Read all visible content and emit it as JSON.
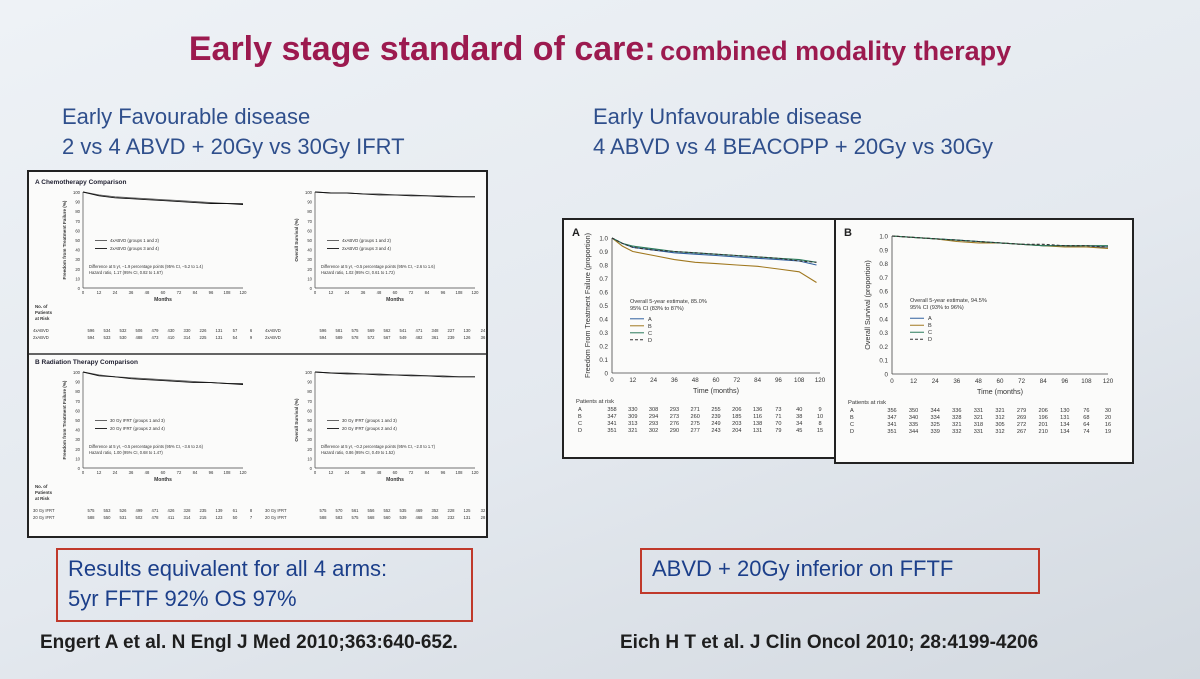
{
  "slide": {
    "title_main": "Early stage standard of care:",
    "title_sub": "combined modality therapy",
    "left": {
      "heading_line1": "Early Favourable disease",
      "heading_line2": "2 vs 4 ABVD + 20Gy vs 30Gy IFRT",
      "result_line1": "Results equivalent for all 4 arms:",
      "result_line2": "5yr FFTF 92%  OS 97%",
      "reference": "Engert A et al. N Engl J Med 2010;363:640-652."
    },
    "right": {
      "heading_line1": "Early Unfavourable disease",
      "heading_line2": "4 ABVD vs 4 BEACOPP + 20Gy vs 30Gy",
      "result": "ABVD + 20Gy inferior on FFTF",
      "reference": "Eich H T et al. J Clin Oncol 2010; 28:4199-4206"
    }
  },
  "colors": {
    "title": "#9c1a4f",
    "heading": "#2f4f8c",
    "box_border": "#c0392b",
    "box_text": "#1c3f8a"
  },
  "left_figure": {
    "sections": [
      {
        "title": "A  Chemotherapy Comparison",
        "panels": [
          {
            "ylabel": "Freedom from Treatment Failure (%)",
            "legend": [
              "4xABVD (groups 1 and 2)",
              "2xABVD (groups 3 and 4)"
            ],
            "stat_1": "Difference at 5 yr, −1.9 percentage points (95% CI, −5.2 to 1.4)",
            "stat_2": "Hazard ratio, 1.17 (95% CI, 0.82 to 1.67)"
          },
          {
            "ylabel": "Overall Survival (%)",
            "legend": [
              "4xABVD (groups 1 and 2)",
              "2xABVD (groups 3 and 4)"
            ],
            "stat_1": "Difference at 5 yr, −0.5 percentage points (95% CI, −2.6 to 1.6)",
            "stat_2": "Hazard ratio, 1.02 (95% CI, 0.61 to 1.72)"
          }
        ],
        "risk_labels": [
          "4xABVD",
          "2xABVD"
        ],
        "risk_rows": [
          [
            "596",
            "534",
            "532",
            "506",
            "479",
            "430",
            "330",
            "226",
            "131",
            "57",
            "6"
          ],
          [
            "594",
            "533",
            "530",
            "488",
            "473",
            "410",
            "314",
            "225",
            "131",
            "54",
            "9"
          ]
        ],
        "risk_rows_os": [
          [
            "596",
            "581",
            "575",
            "569",
            "562",
            "541",
            "471",
            "348",
            "227",
            "130",
            "24"
          ],
          [
            "594",
            "589",
            "578",
            "572",
            "567",
            "549",
            "482",
            "361",
            "239",
            "126",
            "36"
          ]
        ]
      },
      {
        "title": "B  Radiation Therapy Comparison",
        "panels": [
          {
            "ylabel": "Freedom from Treatment Failure (%)",
            "legend": [
              "30 Gy IFRT (groups 1 and 3)",
              "20 Gy IFRT (groups 2 and 4)"
            ],
            "stat_1": "Difference at 5 yr, −0.5 percentage points (95% CI, −3.6 to 2.6)",
            "stat_2": "Hazard ratio, 1.00 (95% CI, 0.68 to 1.47)"
          },
          {
            "ylabel": "Overall Survival (%)",
            "legend": [
              "30 Gy IFRT (groups 1 and 3)",
              "20 Gy IFRT (groups 2 and 4)"
            ],
            "stat_1": "Difference at 5 yr, −0.2 percentage points (95% CI, −2.0 to 1.7)",
            "stat_2": "Hazard ratio, 0.86 (95% CI, 0.49 to 1.52)"
          }
        ],
        "risk_labels": [
          "30 Gy IFRT",
          "20 Gy IFRT"
        ],
        "risk_rows": [
          [
            "575",
            "553",
            "526",
            "499",
            "471",
            "426",
            "328",
            "235",
            "139",
            "61",
            "8"
          ],
          [
            "588",
            "550",
            "531",
            "502",
            "478",
            "411",
            "314",
            "215",
            "123",
            "50",
            "7"
          ]
        ],
        "risk_rows_os": [
          [
            "575",
            "570",
            "561",
            "556",
            "552",
            "535",
            "469",
            "352",
            "228",
            "125",
            "32"
          ],
          [
            "588",
            "583",
            "575",
            "568",
            "560",
            "539",
            "468",
            "346",
            "232",
            "131",
            "28"
          ]
        ]
      }
    ],
    "xlabel": "Months",
    "yticks": [
      "100",
      "90",
      "80",
      "70",
      "60",
      "50",
      "40",
      "30",
      "20",
      "10",
      "0"
    ],
    "xticks": [
      "0",
      "12",
      "24",
      "36",
      "48",
      "60",
      "72",
      "84",
      "96",
      "108",
      "120"
    ],
    "risk_header": [
      "No. of",
      "Patients",
      "at Risk"
    ]
  },
  "right_figure": {
    "panel_a": {
      "letter": "A",
      "ylabel": "Freedom From Treatment Failure (proportion)",
      "estimate_1": "Overall 5-year estimate, 85.0%",
      "estimate_2": "95% CI (83% to 87%)",
      "risk": [
        [
          "A",
          "358",
          "330",
          "308",
          "293",
          "271",
          "255",
          "206",
          "136",
          "73",
          "40",
          "9"
        ],
        [
          "B",
          "347",
          "309",
          "294",
          "273",
          "260",
          "239",
          "185",
          "116",
          "71",
          "38",
          "10"
        ],
        [
          "C",
          "341",
          "313",
          "293",
          "276",
          "275",
          "249",
          "203",
          "138",
          "70",
          "34",
          "8"
        ],
        [
          "D",
          "351",
          "321",
          "302",
          "290",
          "277",
          "243",
          "204",
          "131",
          "79",
          "45",
          "15"
        ]
      ]
    },
    "panel_b": {
      "letter": "B",
      "ylabel": "Overall Survival (proportion)",
      "estimate_1": "Overall 5-year estimate, 94.5%",
      "estimate_2": "95% CI (93% to 96%)",
      "risk": [
        [
          "A",
          "356",
          "350",
          "344",
          "336",
          "331",
          "321",
          "279",
          "206",
          "130",
          "76",
          "30"
        ],
        [
          "B",
          "347",
          "340",
          "334",
          "328",
          "321",
          "312",
          "269",
          "196",
          "131",
          "68",
          "20"
        ],
        [
          "C",
          "341",
          "335",
          "325",
          "321",
          "318",
          "305",
          "272",
          "201",
          "134",
          "64",
          "16"
        ],
        [
          "D",
          "351",
          "344",
          "339",
          "332",
          "331",
          "312",
          "267",
          "210",
          "134",
          "74",
          "19"
        ]
      ]
    },
    "yticks": [
      "1.0",
      "0.9",
      "0.8",
      "0.7",
      "0.6",
      "0.5",
      "0.4",
      "0.3",
      "0.2",
      "0.1",
      "0"
    ],
    "xticks": [
      "0",
      "12",
      "24",
      "36",
      "48",
      "60",
      "72",
      "84",
      "96",
      "108",
      "120"
    ],
    "xlabel": "Time (months)",
    "legend": [
      "A",
      "B",
      "C",
      "D"
    ],
    "risk_header": "Patients at risk"
  },
  "chart_data": [
    {
      "type": "line",
      "title": "A  Chemotherapy Comparison",
      "ylabel": "Freedom from Treatment Failure (%)",
      "xlabel": "Months",
      "xlim": [
        0,
        120
      ],
      "ylim": [
        0,
        100
      ],
      "series": [
        {
          "name": "4xABVD (groups 1 and 2)",
          "x": [
            0,
            12,
            24,
            36,
            48,
            60,
            72,
            84,
            96,
            108,
            120
          ],
          "y": [
            100,
            97,
            95,
            94,
            93,
            92,
            91,
            90,
            89,
            88,
            88
          ]
        },
        {
          "name": "2xABVD (groups 3 and 4)",
          "x": [
            0,
            12,
            24,
            36,
            48,
            60,
            72,
            84,
            96,
            108,
            120
          ],
          "y": [
            100,
            96,
            94,
            93,
            92,
            91,
            90,
            89,
            88,
            88,
            87
          ]
        }
      ]
    },
    {
      "type": "line",
      "title": "A  Chemotherapy Comparison",
      "ylabel": "Overall Survival (%)",
      "xlabel": "Months",
      "xlim": [
        0,
        120
      ],
      "ylim": [
        0,
        100
      ],
      "series": [
        {
          "name": "4xABVD (groups 1 and 2)",
          "x": [
            0,
            12,
            24,
            36,
            48,
            60,
            72,
            84,
            96,
            108,
            120
          ],
          "y": [
            100,
            99,
            99,
            98,
            98,
            97,
            97,
            96,
            96,
            95,
            95
          ]
        },
        {
          "name": "2xABVD (groups 3 and 4)",
          "x": [
            0,
            12,
            24,
            36,
            48,
            60,
            72,
            84,
            96,
            108,
            120
          ],
          "y": [
            100,
            99,
            99,
            98,
            97,
            97,
            96,
            96,
            95,
            95,
            95
          ]
        }
      ]
    },
    {
      "type": "line",
      "title": "B  Radiation Therapy Comparison",
      "ylabel": "Freedom from Treatment Failure (%)",
      "xlabel": "Months",
      "xlim": [
        0,
        120
      ],
      "ylim": [
        0,
        100
      ],
      "series": [
        {
          "name": "30 Gy IFRT (groups 1 and 3)",
          "x": [
            0,
            12,
            24,
            36,
            48,
            60,
            72,
            84,
            96,
            108,
            120
          ],
          "y": [
            100,
            97,
            95,
            94,
            93,
            92,
            91,
            90,
            89,
            88,
            88
          ]
        },
        {
          "name": "20 Gy IFRT (groups 2 and 4)",
          "x": [
            0,
            12,
            24,
            36,
            48,
            60,
            72,
            84,
            96,
            108,
            120
          ],
          "y": [
            100,
            96,
            95,
            93,
            92,
            91,
            90,
            89,
            89,
            88,
            87
          ]
        }
      ]
    },
    {
      "type": "line",
      "title": "B  Radiation Therapy Comparison",
      "ylabel": "Overall Survival (%)",
      "xlabel": "Months",
      "xlim": [
        0,
        120
      ],
      "ylim": [
        0,
        100
      ],
      "series": [
        {
          "name": "30 Gy IFRT (groups 1 and 3)",
          "x": [
            0,
            12,
            24,
            36,
            48,
            60,
            72,
            84,
            96,
            108,
            120
          ],
          "y": [
            100,
            99,
            99,
            98,
            98,
            97,
            97,
            96,
            96,
            95,
            95
          ]
        },
        {
          "name": "20 Gy IFRT (groups 2 and 4)",
          "x": [
            0,
            12,
            24,
            36,
            48,
            60,
            72,
            84,
            96,
            108,
            120
          ],
          "y": [
            100,
            99,
            98,
            98,
            97,
            97,
            96,
            96,
            95,
            95,
            95
          ]
        }
      ]
    },
    {
      "type": "line",
      "title": "A",
      "ylabel": "Freedom From Treatment Failure (proportion)",
      "xlabel": "Time (months)",
      "xlim": [
        0,
        120
      ],
      "ylim": [
        0,
        1.0
      ],
      "series": [
        {
          "name": "A",
          "x": [
            0,
            6,
            12,
            24,
            36,
            48,
            60,
            72,
            84,
            96,
            108,
            118
          ],
          "y": [
            1.0,
            0.96,
            0.93,
            0.91,
            0.89,
            0.88,
            0.87,
            0.86,
            0.85,
            0.84,
            0.83,
            0.8
          ]
        },
        {
          "name": "B",
          "x": [
            0,
            6,
            12,
            24,
            36,
            48,
            60,
            72,
            84,
            96,
            108,
            118
          ],
          "y": [
            1.0,
            0.94,
            0.9,
            0.87,
            0.84,
            0.82,
            0.81,
            0.8,
            0.79,
            0.77,
            0.75,
            0.67
          ]
        },
        {
          "name": "C",
          "x": [
            0,
            6,
            12,
            24,
            36,
            48,
            60,
            72,
            84,
            96,
            108,
            118
          ],
          "y": [
            1.0,
            0.96,
            0.94,
            0.92,
            0.9,
            0.89,
            0.88,
            0.87,
            0.86,
            0.85,
            0.84,
            0.82
          ]
        },
        {
          "name": "D",
          "x": [
            0,
            6,
            12,
            24,
            36,
            48,
            60,
            72,
            84,
            96,
            108,
            118
          ],
          "y": [
            1.0,
            0.96,
            0.93,
            0.91,
            0.9,
            0.89,
            0.88,
            0.87,
            0.86,
            0.85,
            0.83,
            0.82
          ]
        }
      ]
    },
    {
      "type": "line",
      "title": "B",
      "ylabel": "Overall Survival (proportion)",
      "xlabel": "Time (months)",
      "xlim": [
        0,
        120
      ],
      "ylim": [
        0,
        1.0
      ],
      "series": [
        {
          "name": "A",
          "x": [
            0,
            12,
            24,
            36,
            48,
            60,
            72,
            84,
            96,
            108,
            120
          ],
          "y": [
            1.0,
            0.99,
            0.98,
            0.97,
            0.96,
            0.95,
            0.94,
            0.93,
            0.93,
            0.92,
            0.92
          ]
        },
        {
          "name": "B",
          "x": [
            0,
            12,
            24,
            36,
            48,
            60,
            72,
            84,
            96,
            108,
            120
          ],
          "y": [
            1.0,
            0.99,
            0.98,
            0.96,
            0.95,
            0.95,
            0.94,
            0.93,
            0.92,
            0.92,
            0.91
          ]
        },
        {
          "name": "C",
          "x": [
            0,
            12,
            24,
            36,
            48,
            60,
            72,
            84,
            96,
            108,
            120
          ],
          "y": [
            1.0,
            0.99,
            0.98,
            0.97,
            0.96,
            0.95,
            0.94,
            0.93,
            0.93,
            0.93,
            0.93
          ]
        },
        {
          "name": "D",
          "x": [
            0,
            12,
            24,
            36,
            48,
            60,
            72,
            84,
            96,
            108,
            120
          ],
          "y": [
            1.0,
            0.99,
            0.98,
            0.97,
            0.96,
            0.95,
            0.94,
            0.94,
            0.93,
            0.93,
            0.92
          ]
        }
      ]
    }
  ]
}
